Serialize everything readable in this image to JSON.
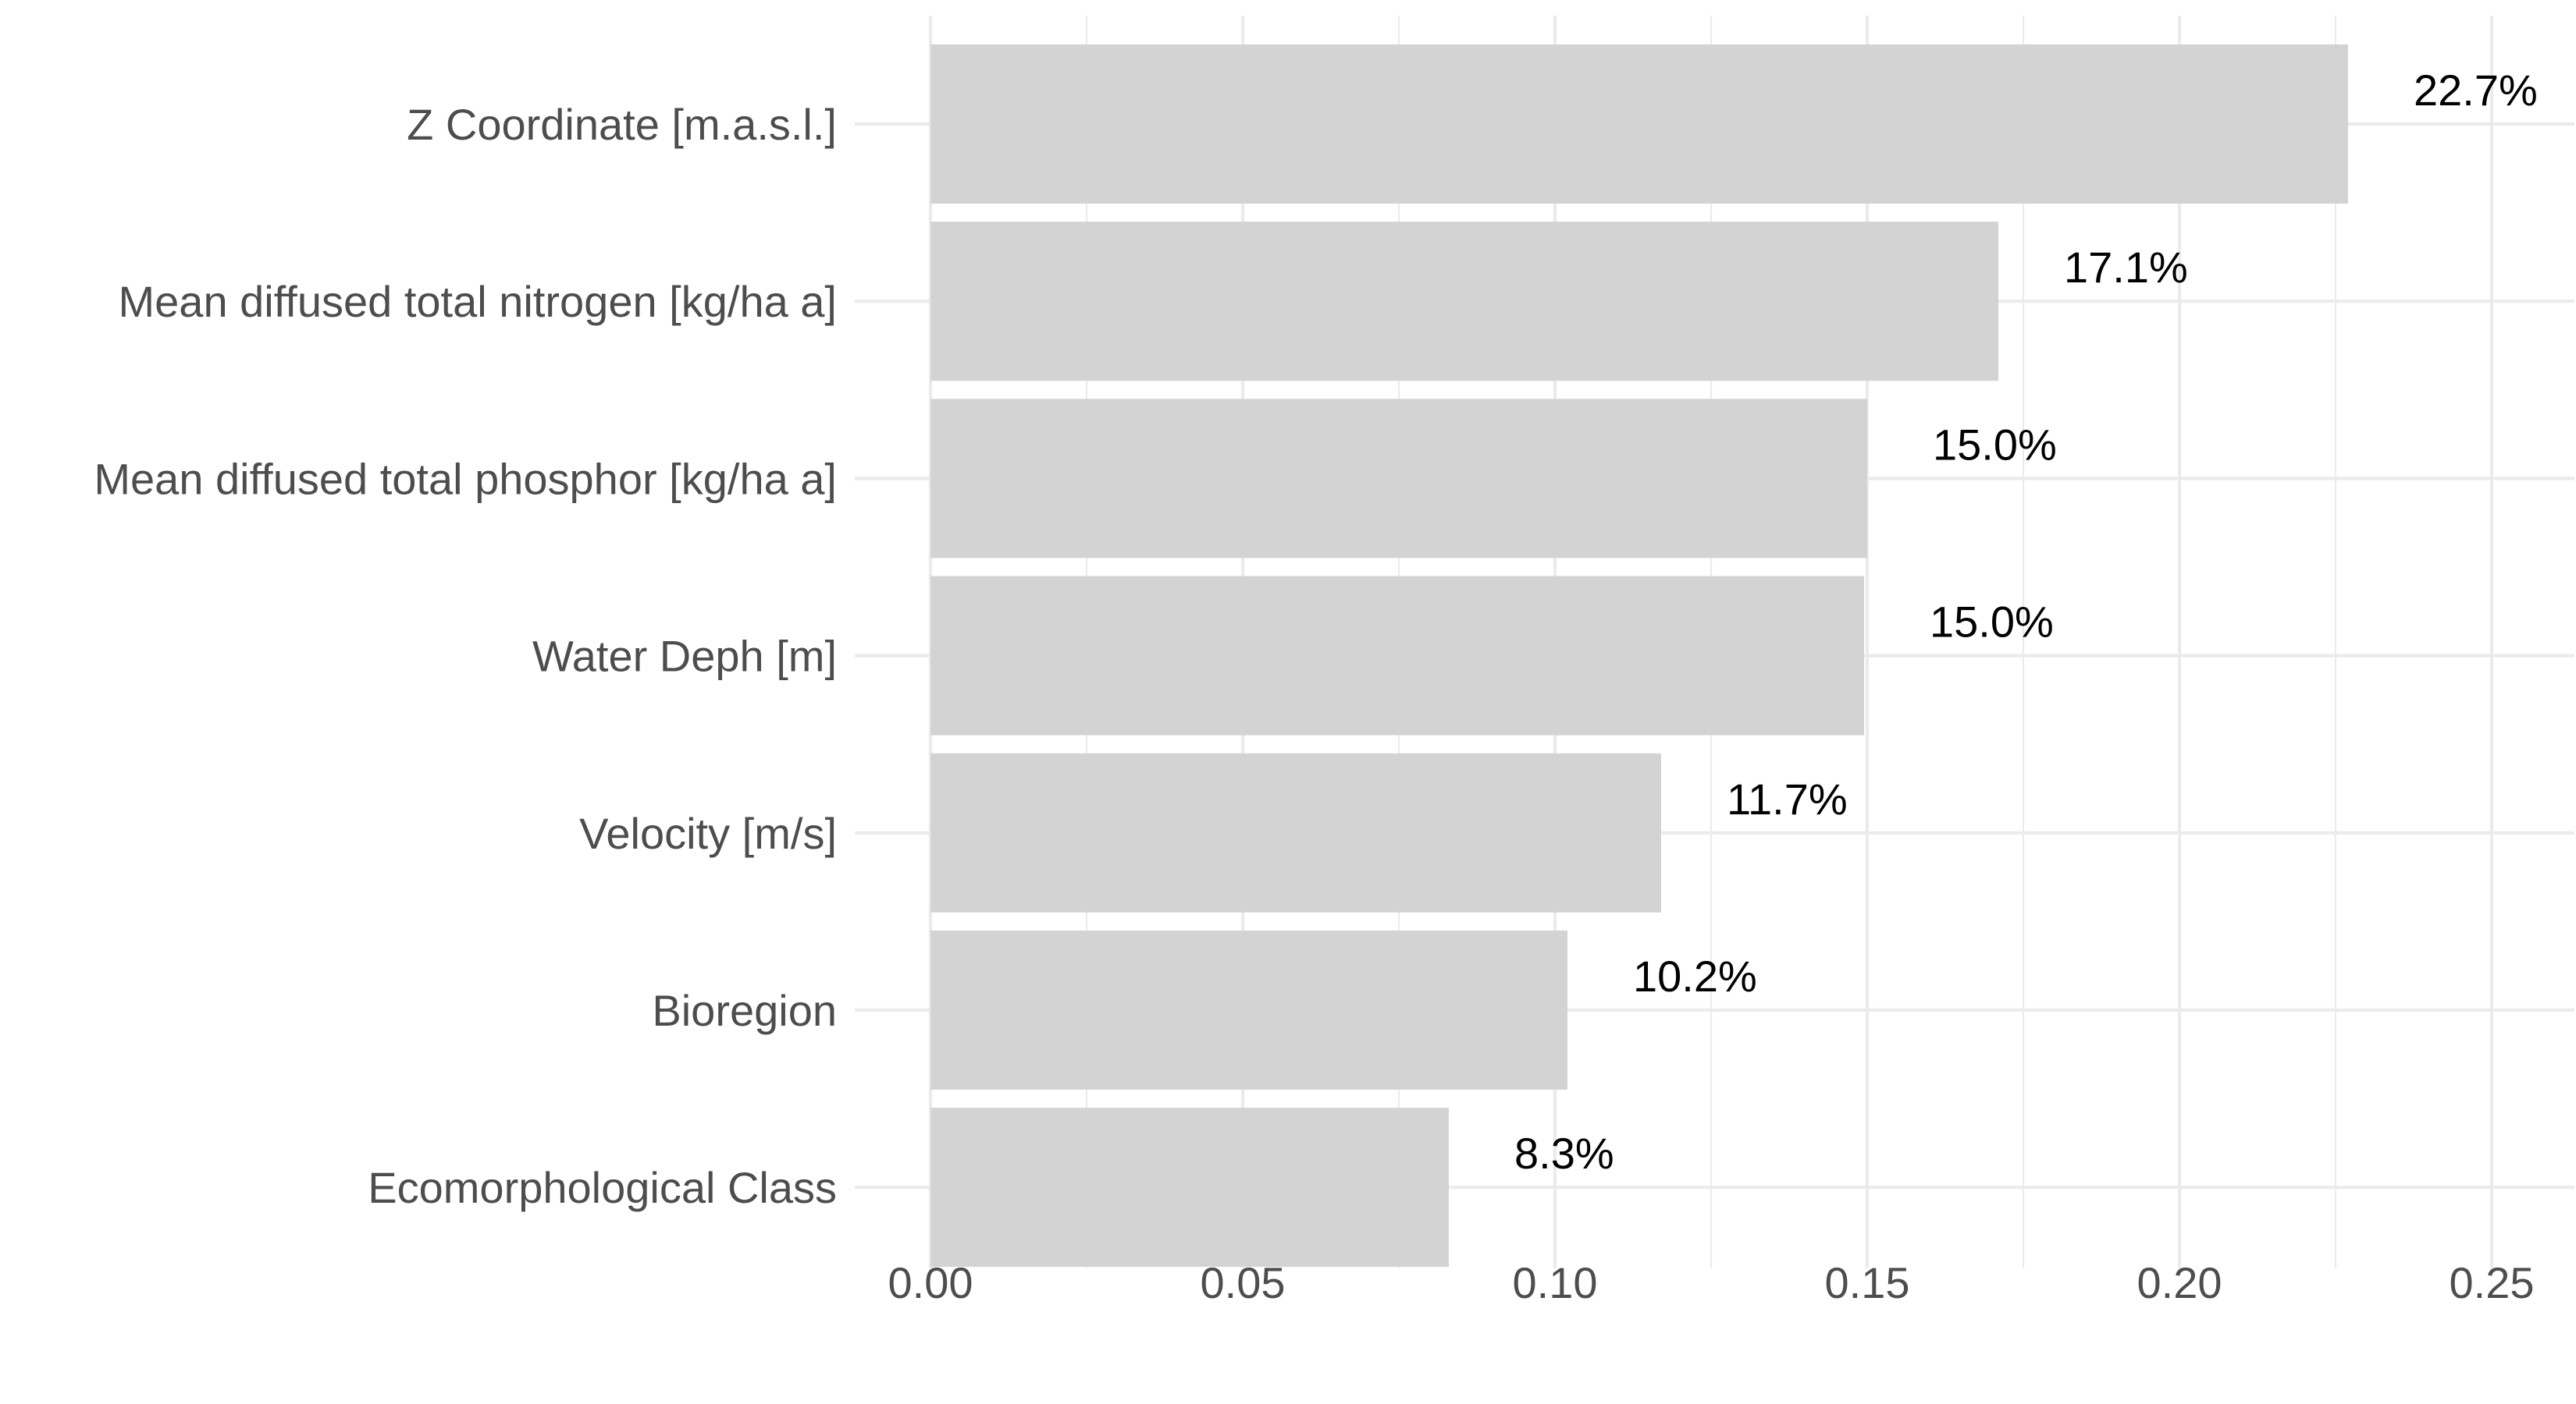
{
  "chart_data": {
    "type": "bar",
    "orientation": "horizontal",
    "title": "",
    "xlabel": "",
    "ylabel": "",
    "categories": [
      "Z Coordinate [m.a.s.l.]",
      "Mean diffused total nitrogen [kg/ha a]",
      "Mean diffused total phosphor [kg/ha a]",
      "Water Deph [m]",
      "Velocity [m/s]",
      "Bioregion",
      "Ecomorphological Class"
    ],
    "values": [
      0.227,
      0.171,
      0.15,
      0.1495,
      0.117,
      0.102,
      0.083
    ],
    "data_labels": [
      "22.7%",
      "17.1%",
      "15.0%",
      "15.0%",
      "11.7%",
      "10.2%",
      "8.3%"
    ],
    "xlim": [
      0,
      0.25
    ],
    "x_ticks": [
      0,
      0.05,
      0.1,
      0.15,
      0.2,
      0.25
    ],
    "x_tick_labels": [
      "0.00",
      "0.05",
      "0.10",
      "0.15",
      "0.20",
      "0.25"
    ],
    "grid": true,
    "legend": "none",
    "colors": {
      "bar": "#d3d3d3",
      "grid": "#ebebeb",
      "axis_text": "#4d4d4d",
      "label_text": "#000000"
    }
  }
}
